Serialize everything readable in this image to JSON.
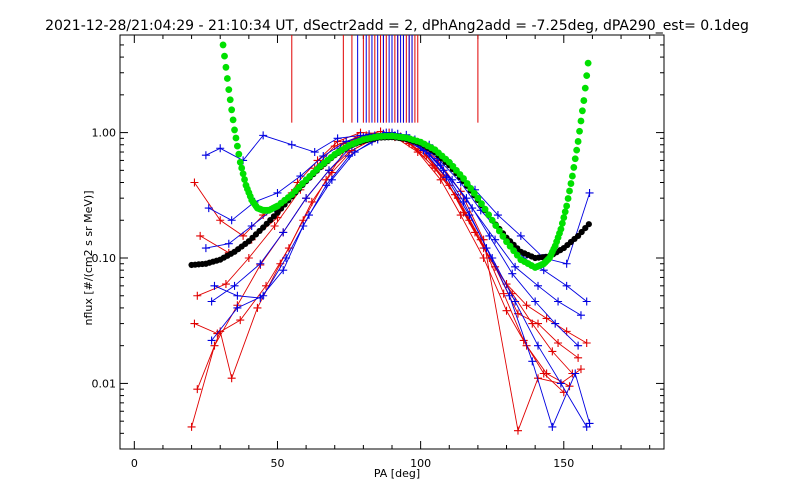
{
  "chart_data": {
    "type": "scatter",
    "title": "2021-12-28/21:04:29 - 21:10:34 UT, dSectr2add = 2, dPhAng2add = -7.25deg, dPA290_est=   0.1deg",
    "xlabel": "PA [deg]",
    "ylabel": "nflux [#/(cm2 s sr MeV)]",
    "xlim": [
      -5,
      185
    ],
    "ylim": [
      0.003,
      6.0
    ],
    "yscale": "log",
    "grid": false,
    "x_ticks": [
      {
        "value": 0,
        "label": "0"
      },
      {
        "value": 50,
        "label": "50"
      },
      {
        "value": 100,
        "label": "100"
      },
      {
        "value": 150,
        "label": "150"
      }
    ],
    "y_ticks": [
      {
        "value": 0.01,
        "label": "0.01"
      },
      {
        "value": 0.1,
        "label": "0.10"
      },
      {
        "value": 1.0,
        "label": "1.00"
      }
    ],
    "colors": {
      "red": "#e00000",
      "blue": "#0000e0",
      "green": "#00e000",
      "black": "#000000"
    },
    "series": [
      {
        "color": "red",
        "style": "lines+plus",
        "points": [
          [
            21,
            0.4
          ],
          [
            30,
            0.2
          ],
          [
            38,
            0.15
          ],
          [
            45,
            0.22
          ],
          [
            55,
            0.33
          ],
          [
            63,
            0.52
          ],
          [
            70,
            0.78
          ],
          [
            78,
            0.92
          ],
          [
            86,
            1.02
          ],
          [
            93,
            0.93
          ],
          [
            100,
            0.74
          ],
          [
            108,
            0.46
          ],
          [
            115,
            0.23
          ],
          [
            122,
            0.12
          ],
          [
            130,
            0.062
          ],
          [
            137,
            0.042
          ],
          [
            144,
            0.033
          ],
          [
            151,
            0.026
          ],
          [
            158,
            0.021
          ]
        ]
      },
      {
        "color": "red",
        "style": "lines+plus",
        "points": [
          [
            22,
            0.05
          ],
          [
            32,
            0.062
          ],
          [
            40,
            0.1
          ],
          [
            49,
            0.18
          ],
          [
            58,
            0.35
          ],
          [
            66,
            0.55
          ],
          [
            73,
            0.82
          ],
          [
            81,
            0.95
          ],
          [
            89,
            1.0
          ],
          [
            96,
            0.82
          ],
          [
            104,
            0.55
          ],
          [
            112,
            0.32
          ],
          [
            119,
            0.16
          ],
          [
            126,
            0.085
          ],
          [
            134,
            0.036
          ],
          [
            141,
            0.03
          ],
          [
            148,
            0.021
          ],
          [
            155,
            0.016
          ]
        ]
      },
      {
        "color": "red",
        "style": "lines+plus",
        "points": [
          [
            20,
            0.0045
          ],
          [
            28,
            0.02
          ],
          [
            36,
            0.042
          ],
          [
            44,
            0.088
          ],
          [
            52,
            0.16
          ],
          [
            60,
            0.3
          ],
          [
            68,
            0.5
          ],
          [
            75,
            0.7
          ],
          [
            83,
            0.88
          ],
          [
            90,
            0.95
          ],
          [
            97,
            0.8
          ],
          [
            105,
            0.52
          ],
          [
            113,
            0.3
          ],
          [
            121,
            0.14
          ],
          [
            129,
            0.052
          ],
          [
            136,
            0.022
          ],
          [
            143,
            0.012
          ],
          [
            150,
            0.0085
          ]
        ]
      },
      {
        "color": "red",
        "style": "lines+plus",
        "points": [
          [
            23,
            0.15
          ],
          [
            33,
            0.11
          ],
          [
            41,
            0.14
          ],
          [
            50,
            0.21
          ],
          [
            57,
            0.4
          ],
          [
            64,
            0.6
          ],
          [
            71,
            0.85
          ],
          [
            79,
            1.0
          ],
          [
            87,
            0.98
          ],
          [
            94,
            0.9
          ],
          [
            102,
            0.65
          ],
          [
            110,
            0.38
          ],
          [
            117,
            0.2
          ],
          [
            124,
            0.1
          ],
          [
            132,
            0.052
          ],
          [
            139,
            0.03
          ],
          [
            146,
            0.018
          ],
          [
            153,
            0.012
          ]
        ]
      },
      {
        "color": "red",
        "style": "lines+plus",
        "points": [
          [
            21,
            0.03
          ],
          [
            29,
            0.025
          ],
          [
            37,
            0.032
          ],
          [
            46,
            0.06
          ],
          [
            54,
            0.12
          ],
          [
            62,
            0.28
          ],
          [
            69,
            0.48
          ],
          [
            76,
            0.72
          ],
          [
            84,
            0.9
          ],
          [
            91,
            0.92
          ],
          [
            99,
            0.7
          ],
          [
            107,
            0.42
          ],
          [
            114,
            0.22
          ],
          [
            122,
            0.1
          ],
          [
            130,
            0.038
          ],
          [
            137,
            0.02
          ],
          [
            144,
            0.012
          ],
          [
            152,
            0.0095
          ]
        ]
      },
      {
        "color": "red",
        "style": "lines+plus",
        "points": [
          [
            22,
            0.009
          ],
          [
            30,
            0.026
          ],
          [
            34,
            0.011
          ],
          [
            43,
            0.04
          ],
          [
            51,
            0.09
          ],
          [
            59,
            0.2
          ],
          [
            67,
            0.42
          ],
          [
            74,
            0.75
          ],
          [
            82,
            0.92
          ],
          [
            90,
            0.97
          ],
          [
            98,
            0.86
          ],
          [
            106,
            0.6
          ],
          [
            114,
            0.34
          ],
          [
            122,
            0.14
          ],
          [
            134,
            0.0042
          ],
          [
            141,
            0.011
          ],
          [
            149,
            0.01
          ],
          [
            156,
            0.013
          ]
        ]
      },
      {
        "color": "blue",
        "style": "lines+plus",
        "points": [
          [
            25,
            0.12
          ],
          [
            33,
            0.13
          ],
          [
            41,
            0.18
          ],
          [
            49,
            0.25
          ],
          [
            57,
            0.36
          ],
          [
            65,
            0.55
          ],
          [
            72,
            0.75
          ],
          [
            80,
            0.92
          ],
          [
            88,
            1.0
          ],
          [
            95,
            0.9
          ],
          [
            103,
            0.68
          ],
          [
            111,
            0.42
          ],
          [
            118,
            0.25
          ],
          [
            126,
            0.14
          ],
          [
            133,
            0.085
          ],
          [
            141,
            0.06
          ],
          [
            148,
            0.045
          ],
          [
            156,
            0.035
          ]
        ]
      },
      {
        "color": "blue",
        "style": "lines+plus",
        "points": [
          [
            27,
            0.045
          ],
          [
            35,
            0.06
          ],
          [
            44,
            0.09
          ],
          [
            52,
            0.16
          ],
          [
            60,
            0.3
          ],
          [
            68,
            0.5
          ],
          [
            76,
            0.78
          ],
          [
            84,
            0.95
          ],
          [
            92,
            0.98
          ],
          [
            100,
            0.78
          ],
          [
            108,
            0.5
          ],
          [
            116,
            0.3
          ],
          [
            124,
            0.15
          ],
          [
            132,
            0.075
          ],
          [
            140,
            0.045
          ],
          [
            147,
            0.03
          ],
          [
            155,
            0.02
          ]
        ]
      },
      {
        "color": "blue",
        "style": "lines+plus",
        "points": [
          [
            26,
            0.25
          ],
          [
            34,
            0.2
          ],
          [
            42,
            0.28
          ],
          [
            50,
            0.33
          ],
          [
            58,
            0.45
          ],
          [
            66,
            0.65
          ],
          [
            74,
            0.85
          ],
          [
            82,
            0.97
          ],
          [
            90,
            1.0
          ],
          [
            98,
            0.88
          ],
          [
            106,
            0.62
          ],
          [
            114,
            0.4
          ],
          [
            121,
            0.24
          ],
          [
            129,
            0.15
          ],
          [
            136,
            0.1
          ],
          [
            143,
            0.08
          ],
          [
            151,
            0.06
          ],
          [
            158,
            0.045
          ]
        ]
      },
      {
        "color": "blue",
        "style": "lines+plus",
        "points": [
          [
            27,
            0.022
          ],
          [
            36,
            0.04
          ],
          [
            45,
            0.05
          ],
          [
            53,
            0.1
          ],
          [
            61,
            0.22
          ],
          [
            69,
            0.42
          ],
          [
            77,
            0.7
          ],
          [
            85,
            0.88
          ],
          [
            93,
            0.92
          ],
          [
            101,
            0.72
          ],
          [
            109,
            0.44
          ],
          [
            117,
            0.22
          ],
          [
            125,
            0.1
          ],
          [
            133,
            0.045
          ],
          [
            141,
            0.02
          ],
          [
            149,
            0.01
          ],
          [
            158,
            0.0045
          ]
        ]
      },
      {
        "color": "blue",
        "style": "lines+plus",
        "points": [
          [
            25,
            0.66
          ],
          [
            30,
            0.75
          ],
          [
            38,
            0.6
          ],
          [
            45,
            0.95
          ],
          [
            55,
            0.8
          ],
          [
            63,
            0.7
          ],
          [
            71,
            0.9
          ],
          [
            79,
            0.95
          ],
          [
            87,
            0.98
          ],
          [
            95,
            0.96
          ],
          [
            103,
            0.8
          ],
          [
            111,
            0.55
          ],
          [
            119,
            0.35
          ],
          [
            127,
            0.22
          ],
          [
            135,
            0.15
          ],
          [
            143,
            0.1
          ],
          [
            151,
            0.09
          ],
          [
            159,
            0.33
          ]
        ]
      },
      {
        "color": "blue",
        "style": "lines+plus",
        "points": [
          [
            28,
            0.06
          ],
          [
            36,
            0.05
          ],
          [
            44,
            0.048
          ],
          [
            52,
            0.08
          ],
          [
            59,
            0.18
          ],
          [
            67,
            0.38
          ],
          [
            75,
            0.65
          ],
          [
            83,
            0.85
          ],
          [
            91,
            0.95
          ],
          [
            99,
            0.82
          ],
          [
            107,
            0.55
          ],
          [
            115,
            0.28
          ],
          [
            123,
            0.12
          ],
          [
            131,
            0.05
          ],
          [
            139,
            0.015
          ],
          [
            146,
            0.0045
          ],
          [
            154,
            0.012
          ],
          [
            159,
            0.0048
          ]
        ]
      }
    ],
    "black_curve": [
      [
        20,
        0.088
      ],
      [
        25,
        0.09
      ],
      [
        30,
        0.097
      ],
      [
        35,
        0.112
      ],
      [
        40,
        0.136
      ],
      [
        45,
        0.175
      ],
      [
        50,
        0.23
      ],
      [
        55,
        0.31
      ],
      [
        60,
        0.41
      ],
      [
        65,
        0.53
      ],
      [
        70,
        0.66
      ],
      [
        75,
        0.78
      ],
      [
        80,
        0.86
      ],
      [
        85,
        0.91
      ],
      [
        90,
        0.92
      ],
      [
        95,
        0.89
      ],
      [
        100,
        0.82
      ],
      [
        105,
        0.7
      ],
      [
        110,
        0.55
      ],
      [
        115,
        0.41
      ],
      [
        120,
        0.29
      ],
      [
        125,
        0.2
      ],
      [
        130,
        0.145
      ],
      [
        135,
        0.112
      ],
      [
        140,
        0.1
      ],
      [
        145,
        0.103
      ],
      [
        150,
        0.12
      ],
      [
        155,
        0.15
      ],
      [
        160,
        0.2
      ]
    ],
    "green_curve": [
      [
        31,
        5.0
      ],
      [
        33,
        2.2
      ],
      [
        35,
        1.05
      ],
      [
        37,
        0.58
      ],
      [
        39,
        0.38
      ],
      [
        41,
        0.29
      ],
      [
        43,
        0.25
      ],
      [
        45,
        0.24
      ],
      [
        47,
        0.24
      ],
      [
        50,
        0.26
      ],
      [
        55,
        0.32
      ],
      [
        60,
        0.42
      ],
      [
        65,
        0.54
      ],
      [
        70,
        0.67
      ],
      [
        75,
        0.79
      ],
      [
        80,
        0.88
      ],
      [
        85,
        0.93
      ],
      [
        90,
        0.94
      ],
      [
        95,
        0.91
      ],
      [
        100,
        0.84
      ],
      [
        105,
        0.73
      ],
      [
        110,
        0.58
      ],
      [
        115,
        0.43
      ],
      [
        120,
        0.3
      ],
      [
        125,
        0.2
      ],
      [
        130,
        0.135
      ],
      [
        135,
        0.097
      ],
      [
        140,
        0.084
      ],
      [
        143,
        0.09
      ],
      [
        145,
        0.1
      ],
      [
        147,
        0.125
      ],
      [
        149,
        0.17
      ],
      [
        151,
        0.26
      ],
      [
        153,
        0.45
      ],
      [
        155,
        0.85
      ],
      [
        157,
        1.8
      ],
      [
        159,
        4.5
      ]
    ],
    "red_ticks_x": [
      55,
      73,
      76,
      80,
      82,
      84,
      86,
      87,
      88,
      90,
      91,
      92,
      94,
      95,
      96,
      97,
      98,
      99,
      120
    ],
    "blue_ticks_x": [
      78,
      81,
      83,
      85,
      87,
      89,
      90,
      92,
      93,
      94,
      96,
      97
    ]
  }
}
